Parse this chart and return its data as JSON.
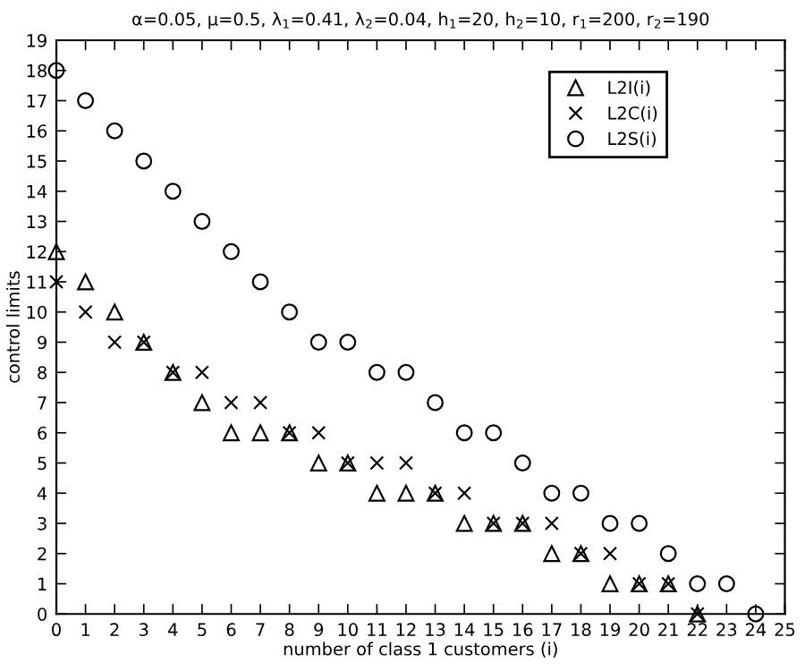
{
  "chart_data": {
    "type": "scatter",
    "title": "α=0.05, μ=0.5, λ$_{1}$=0.41, λ$_{2}$=0.04, h$_{1}$=20, h$_{2}$=10, r$_{1}$=200, r$_{2}$=190",
    "xlabel": "number of class 1 customers (i)",
    "ylabel": "control limits",
    "series": [
      {
        "name": "L2I(i)",
        "color": "#000000",
        "marker": "triangle",
        "x": [
          0,
          1,
          2,
          3,
          4,
          5,
          6,
          7,
          8,
          9,
          10,
          11,
          12,
          13,
          14,
          15,
          16,
          17,
          18,
          19,
          20,
          21,
          22
        ],
        "values": [
          12,
          11,
          10,
          9,
          8,
          7,
          6,
          6,
          6,
          5,
          5,
          4,
          4,
          4,
          3,
          3,
          3,
          2,
          2,
          1,
          1,
          1,
          0
        ]
      },
      {
        "name": "L2C(i)",
        "color": "#000000",
        "marker": "cross",
        "x": [
          0,
          1,
          2,
          3,
          4,
          5,
          6,
          7,
          8,
          9,
          10,
          11,
          12,
          13,
          14,
          15,
          16,
          17,
          18,
          19,
          20,
          21,
          22
        ],
        "values": [
          11,
          10,
          9,
          9,
          8,
          8,
          7,
          7,
          6,
          6,
          5,
          5,
          5,
          4,
          4,
          3,
          3,
          3,
          2,
          2,
          1,
          1,
          0
        ]
      },
      {
        "name": "L2S(i)",
        "color": "#000000",
        "marker": "circle",
        "x": [
          0,
          1,
          2,
          3,
          4,
          5,
          6,
          7,
          8,
          9,
          10,
          11,
          12,
          13,
          14,
          15,
          16,
          17,
          18,
          19,
          20,
          21,
          22,
          23,
          24
        ],
        "values": [
          18,
          17,
          16,
          15,
          14,
          13,
          12,
          11,
          10,
          9,
          9,
          8,
          8,
          7,
          6,
          6,
          5,
          4,
          4,
          3,
          3,
          2,
          1,
          1,
          0
        ]
      }
    ],
    "xlim": [
      0,
      25
    ],
    "xticks": [
      0,
      1,
      2,
      3,
      4,
      5,
      6,
      7,
      8,
      9,
      10,
      11,
      12,
      13,
      14,
      15,
      16,
      17,
      18,
      19,
      20,
      21,
      22,
      23,
      24,
      25
    ],
    "ylim": [
      0,
      19
    ],
    "yticks": [
      0,
      1,
      2,
      3,
      4,
      5,
      6,
      7,
      8,
      9,
      10,
      11,
      12,
      13,
      14,
      15,
      16,
      17,
      18,
      19
    ],
    "grid": false,
    "legend": "top right"
  }
}
